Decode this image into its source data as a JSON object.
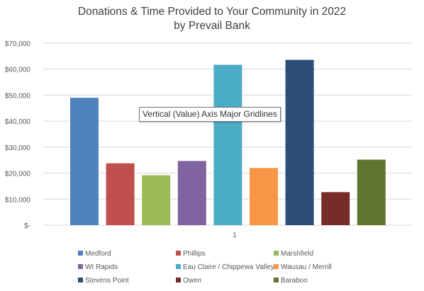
{
  "chart_data": {
    "type": "bar",
    "title": [
      "Donations & Time Provided to Your Community in 2022",
      "by Prevail Bank"
    ],
    "categories": [
      "1"
    ],
    "ylim": [
      0,
      70000
    ],
    "y_ticks": [
      0,
      10000,
      20000,
      30000,
      40000,
      50000,
      60000,
      70000
    ],
    "y_tick_labels": [
      "$-",
      "$10,000",
      "$20,000",
      "$30,000",
      "$40,000",
      "$50,000",
      "$60,000",
      "$70,000"
    ],
    "grid": true,
    "legend_position": "bottom",
    "series": [
      {
        "name": "Medford",
        "values": [
          49000
        ],
        "color": "#4f81bd"
      },
      {
        "name": "Phillips",
        "values": [
          23800
        ],
        "color": "#c0504d"
      },
      {
        "name": "Marshfield",
        "values": [
          19200
        ],
        "color": "#9bbb59"
      },
      {
        "name": "WI Rapids",
        "values": [
          24700
        ],
        "color": "#8064a2"
      },
      {
        "name": "Eau Claire / Chippewa Valley",
        "values": [
          61700
        ],
        "color": "#4bacc6"
      },
      {
        "name": "Wausau / Merrill",
        "values": [
          22000
        ],
        "color": "#f79646"
      },
      {
        "name": "Stevens Point",
        "values": [
          63600
        ],
        "color": "#2c4d75"
      },
      {
        "name": "Owen",
        "values": [
          12700
        ],
        "color": "#772c2a"
      },
      {
        "name": "Baraboo",
        "values": [
          25200
        ],
        "color": "#5f7530"
      }
    ]
  },
  "tooltip": {
    "text": "Vertical (Value) Axis Major Gridlines"
  }
}
